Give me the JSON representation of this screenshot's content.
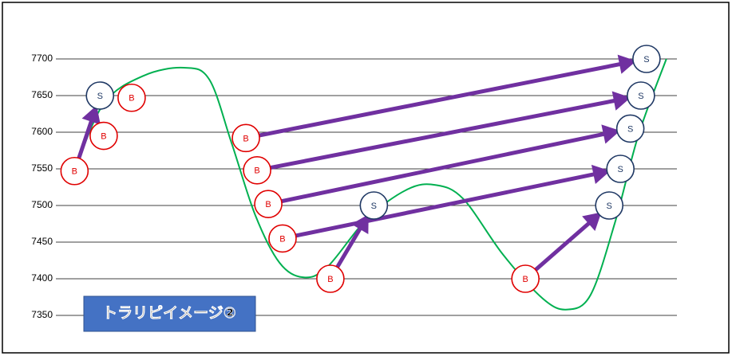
{
  "chart_data": {
    "type": "trade-map",
    "annotation": "トラリピイメージ②",
    "ylim": [
      7350,
      7700
    ],
    "yticks": [
      7350,
      7400,
      7450,
      7500,
      7550,
      7600,
      7650,
      7700
    ],
    "xlim": [
      0,
      100
    ],
    "grid": true,
    "curve": {
      "color": "#00b050",
      "x": [
        3,
        7.7,
        14.1,
        20.6,
        24.7,
        28.3,
        32.1,
        36,
        39.8,
        43.7,
        50.1,
        56.6,
        61.1,
        65.6,
        72,
        78.4,
        82.3,
        86.1,
        90,
        93.8,
        98.3
      ],
      "values": [
        7547,
        7639,
        7677,
        7688,
        7672,
        7585,
        7487,
        7422,
        7402,
        7416,
        7482,
        7522,
        7528,
        7509,
        7433,
        7373,
        7358,
        7378,
        7476,
        7596,
        7700
      ]
    },
    "buy_color": "#e00000",
    "sell_color": "#1f3864",
    "arrow_color": "#7030a0",
    "trades": [
      {
        "buy": {
          "label": "B",
          "x": 3,
          "y": 7547
        },
        "sell": {
          "label": "S",
          "x": 7.1,
          "y": 7650
        }
      },
      {
        "buy": {
          "label": "B",
          "x": 30.6,
          "y": 7592
        },
        "sell": {
          "label": "S",
          "x": 95.1,
          "y": 7700
        }
      },
      {
        "buy": {
          "label": "B",
          "x": 32.4,
          "y": 7548
        },
        "sell": {
          "label": "S",
          "x": 94.2,
          "y": 7650
        }
      },
      {
        "buy": {
          "label": "B",
          "x": 34.2,
          "y": 7502
        },
        "sell": {
          "label": "S",
          "x": 92.5,
          "y": 7605
        }
      },
      {
        "buy": {
          "label": "B",
          "x": 36.5,
          "y": 7455
        },
        "sell": {
          "label": "S",
          "x": 90.9,
          "y": 7550
        }
      },
      {
        "buy": {
          "label": "B",
          "x": 44.2,
          "y": 7400
        },
        "sell": {
          "label": "S",
          "x": 51.2,
          "y": 7500
        }
      },
      {
        "buy": {
          "label": "B",
          "x": 75.6,
          "y": 7400
        },
        "sell": {
          "label": "S",
          "x": 89.1,
          "y": 7500
        }
      }
    ],
    "extra_buys": [
      {
        "label": "B",
        "x": 7.7,
        "y": 7595
      },
      {
        "label": "B",
        "x": 12.2,
        "y": 7647
      }
    ]
  }
}
